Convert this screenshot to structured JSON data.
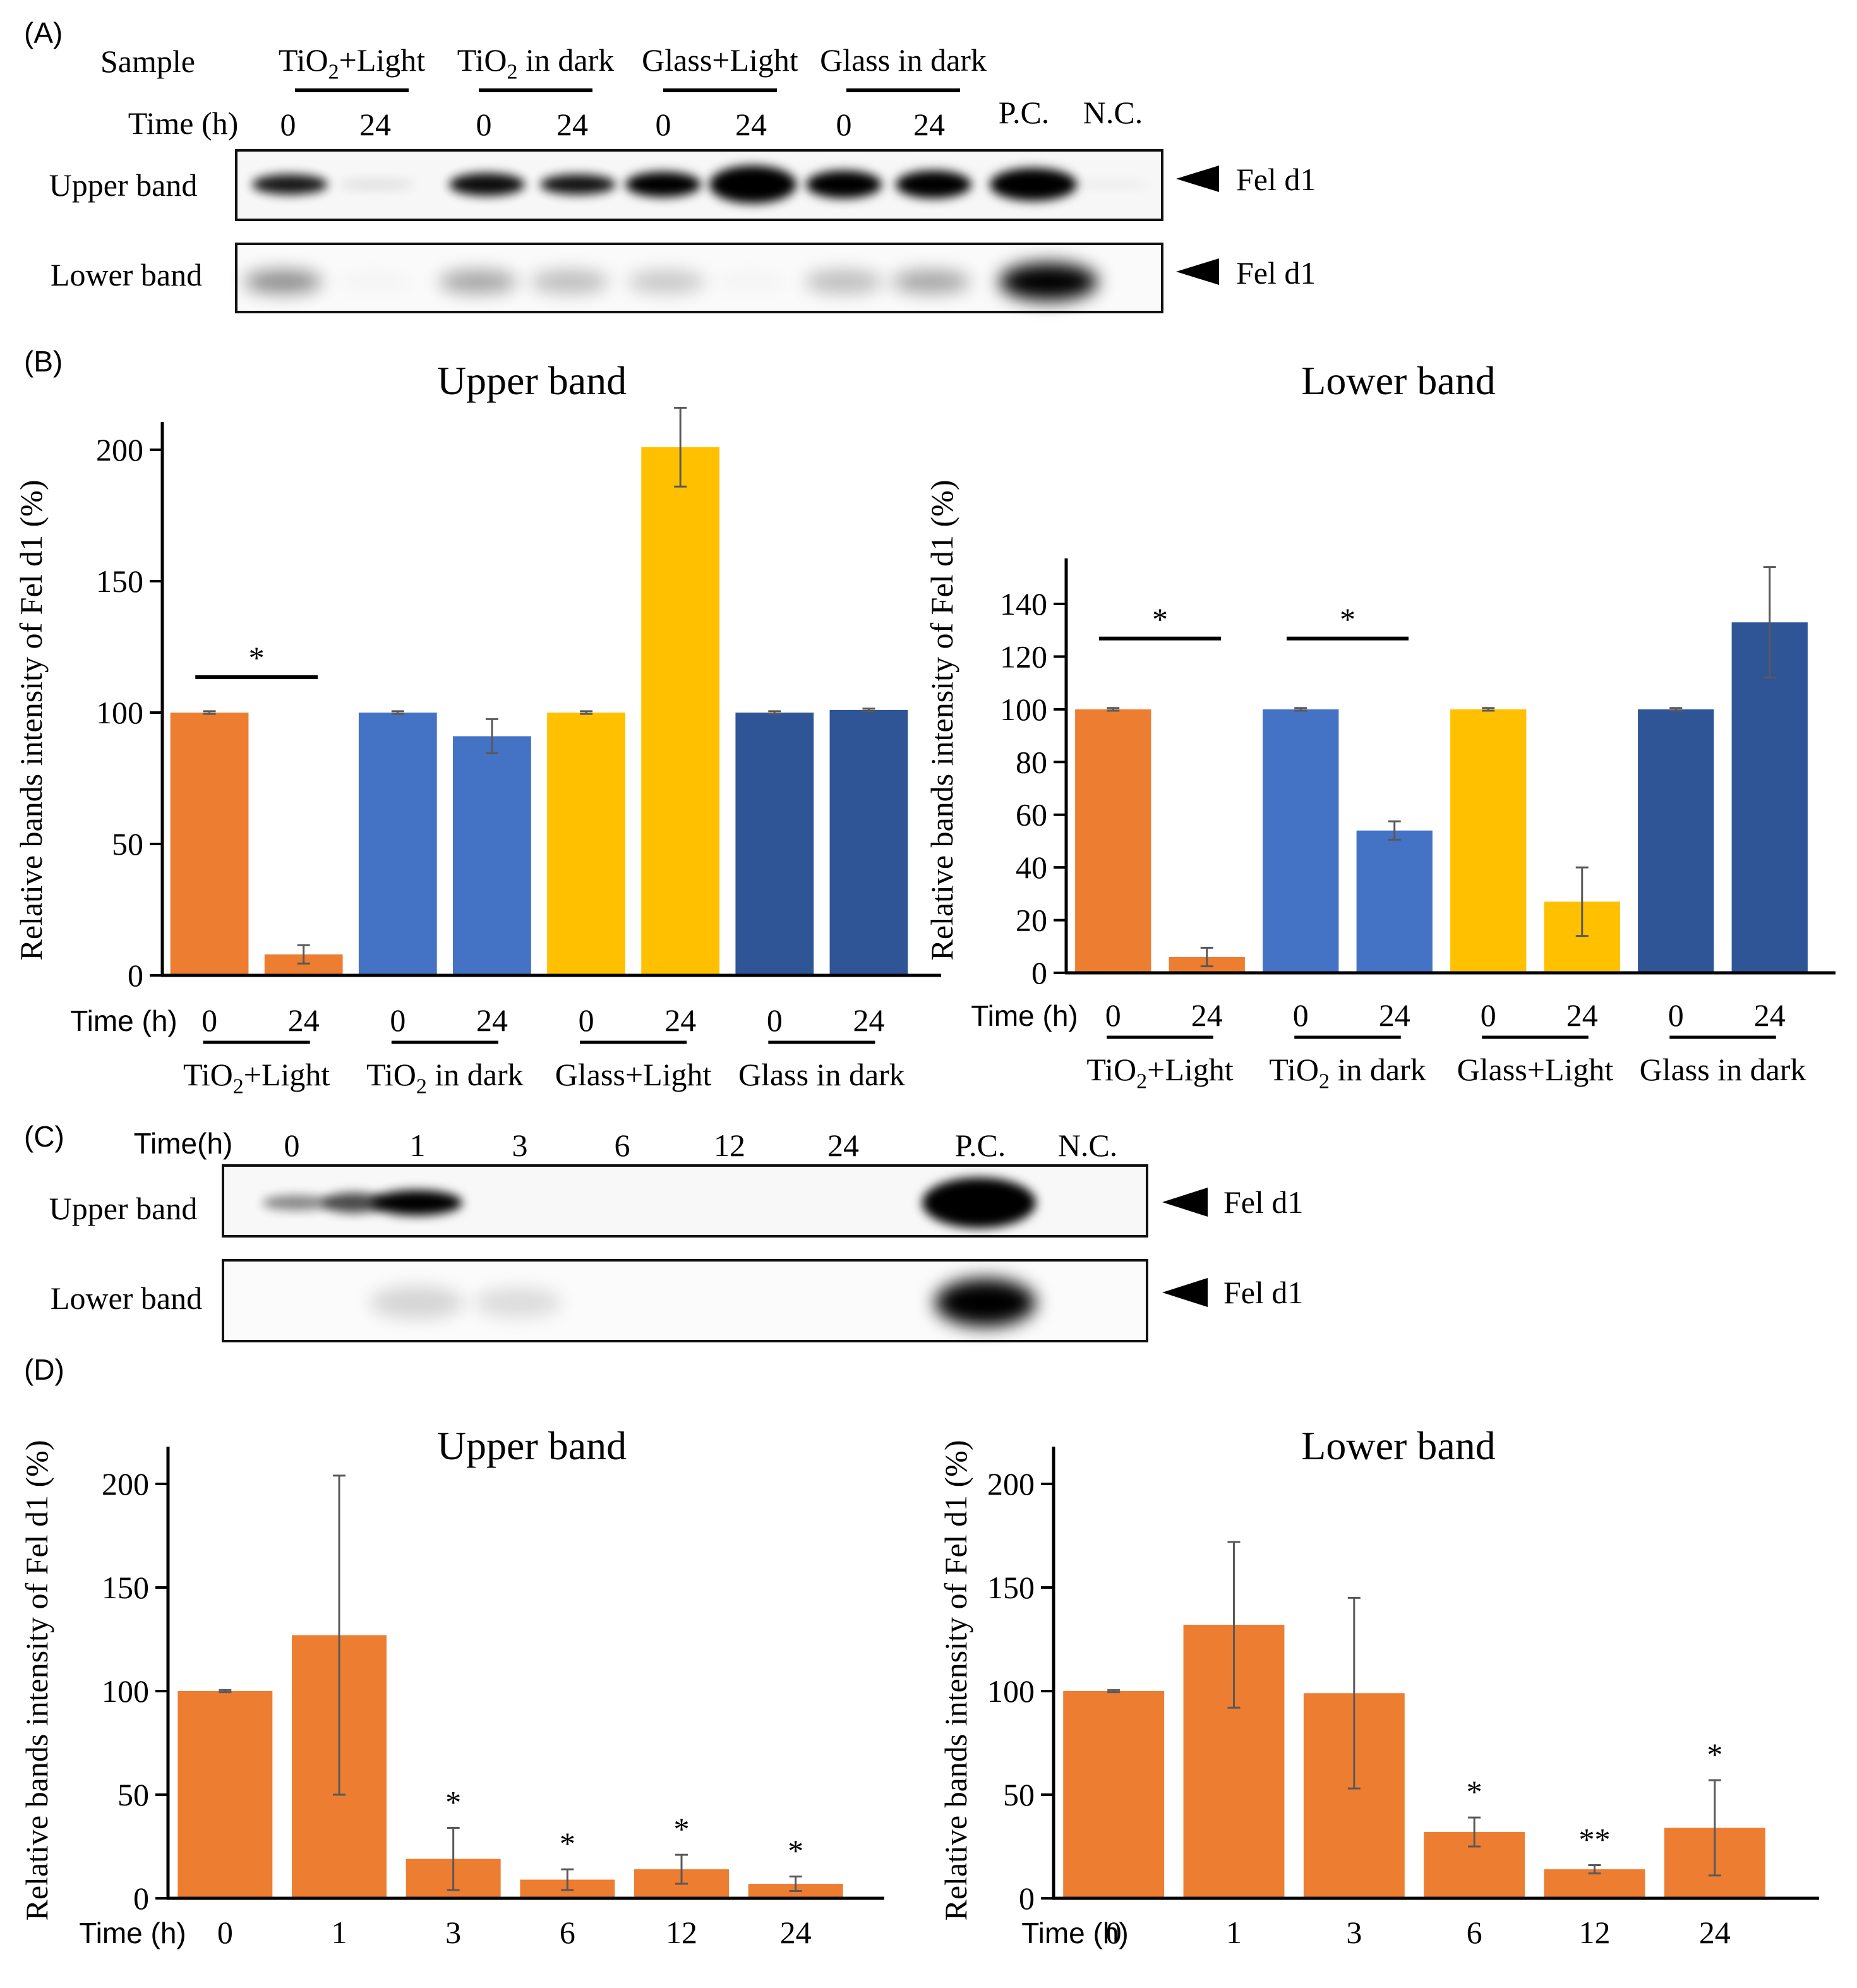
{
  "panel_labels": {
    "a": "(A)",
    "b": "(B)",
    "c": "(C)",
    "d": "(D)"
  },
  "blot_a": {
    "sample_label": "Sample",
    "time_label": "Time (h)",
    "groups": [
      "TiO2+Light",
      "TiO2 in dark",
      "Glass+Light",
      "Glass in dark"
    ],
    "times": [
      "0",
      "24"
    ],
    "pc": "P.C.",
    "nc": "N.C.",
    "rows": [
      "Upper band",
      "Lower band"
    ],
    "marker": "Fel d1"
  },
  "blot_c": {
    "time_label": "Time(h)",
    "times": [
      "0",
      "1",
      "3",
      "6",
      "12",
      "24"
    ],
    "pc": "P.C.",
    "nc": "N.C.",
    "rows": [
      "Upper band",
      "Lower band"
    ],
    "marker": "Fel d1"
  },
  "colors": {
    "orange": "#ED7D31",
    "blue": "#4472C4",
    "gold": "#FFC000",
    "navy": "#2F5597"
  },
  "chart_data": [
    {
      "type": "bar",
      "title": "Upper band",
      "ylabel": "Relative bands intensity of Fel d1 (%)",
      "xlabel": "Time (h)",
      "ylim": [
        0,
        200
      ],
      "yticks": [
        0,
        50,
        100,
        150,
        200
      ],
      "categories": [
        "0",
        "24",
        "0",
        "24",
        "0",
        "24",
        "0",
        "24"
      ],
      "groups": [
        "TiO2+Light",
        "TiO2 in dark",
        "Glass+Light",
        "Glass in dark"
      ],
      "values": [
        100,
        8,
        100,
        91,
        100,
        201,
        100,
        101
      ],
      "errors": [
        0.5,
        3.5,
        0.5,
        6.5,
        0.5,
        15,
        0.5,
        0.5
      ],
      "bar_colors": [
        "#ED7D31",
        "#ED7D31",
        "#4472C4",
        "#4472C4",
        "#FFC000",
        "#FFC000",
        "#2F5597",
        "#2F5597"
      ],
      "significance": [
        {
          "from": 0,
          "to": 1,
          "label": "*"
        }
      ]
    },
    {
      "type": "bar",
      "title": "Lower band",
      "ylabel": "Relative bands intensity of Fel d1 (%)",
      "xlabel": "Time (h)",
      "ylim": [
        0,
        140
      ],
      "yticks": [
        0,
        20,
        40,
        60,
        80,
        100,
        120,
        140
      ],
      "categories": [
        "0",
        "24",
        "0",
        "24",
        "0",
        "24",
        "0",
        "24"
      ],
      "groups": [
        "TiO2+Light",
        "TiO2 in dark",
        "Glass+Light",
        "Glass in dark"
      ],
      "values": [
        100,
        6,
        100,
        54,
        100,
        27,
        100,
        133
      ],
      "errors": [
        0.5,
        3.5,
        0.5,
        3.5,
        0.5,
        13,
        0.5,
        21
      ],
      "bar_colors": [
        "#ED7D31",
        "#ED7D31",
        "#4472C4",
        "#4472C4",
        "#FFC000",
        "#FFC000",
        "#2F5597",
        "#2F5597"
      ],
      "significance": [
        {
          "from": 0,
          "to": 1,
          "label": "*"
        },
        {
          "from": 2,
          "to": 3,
          "label": "*"
        }
      ]
    },
    {
      "type": "bar",
      "title": "Upper band",
      "ylabel": "Relative bands intensity of Fel d1 (%)",
      "xlabel": "Time (h)",
      "ylim": [
        0,
        200
      ],
      "yticks": [
        0,
        50,
        100,
        150,
        200
      ],
      "categories": [
        "0",
        "1",
        "3",
        "6",
        "12",
        "24"
      ],
      "values": [
        100,
        127,
        19,
        9,
        14,
        7
      ],
      "errors": [
        0.5,
        77,
        15,
        5,
        7,
        3.5
      ],
      "bar_color": "#ED7D31",
      "stars": [
        "",
        "",
        "*",
        "*",
        "*",
        "*"
      ]
    },
    {
      "type": "bar",
      "title": "Lower band",
      "ylabel": "Relative bands intensity of Fel d1 (%)",
      "xlabel": "Time (h)",
      "ylim": [
        0,
        200
      ],
      "yticks": [
        0,
        50,
        100,
        150,
        200
      ],
      "categories": [
        "0",
        "1",
        "3",
        "6",
        "12",
        "24"
      ],
      "values": [
        100,
        132,
        99,
        32,
        14,
        34
      ],
      "errors": [
        0.5,
        40,
        46,
        7,
        2,
        23
      ],
      "bar_color": "#ED7D31",
      "stars": [
        "",
        "",
        "",
        "*",
        "**",
        "*"
      ]
    }
  ]
}
